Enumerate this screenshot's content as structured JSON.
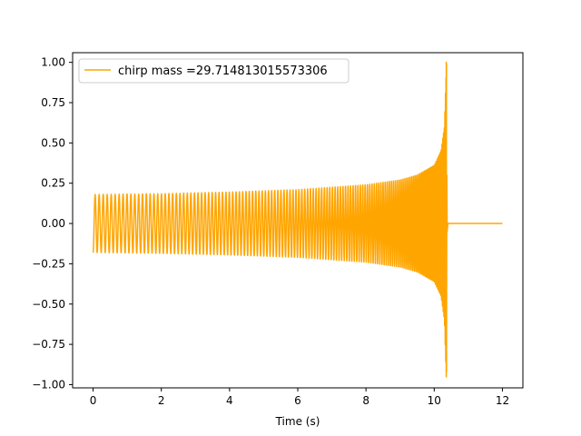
{
  "chart_data": {
    "type": "line",
    "title": "",
    "xlabel": "Time (s)",
    "ylabel": "",
    "xlim": [
      -0.6,
      12.6
    ],
    "ylim": [
      -1.02,
      1.06
    ],
    "x_ticks": [
      0,
      2,
      4,
      6,
      8,
      10,
      12
    ],
    "y_ticks": [
      -1.0,
      -0.75,
      -0.5,
      -0.25,
      0.0,
      0.25,
      0.5,
      0.75,
      1.0
    ],
    "x_tick_labels": [
      "0",
      "2",
      "4",
      "6",
      "8",
      "10",
      "12"
    ],
    "y_tick_labels": [
      "−1.00",
      "−0.75",
      "−0.50",
      "−0.25",
      "0.00",
      "0.25",
      "0.50",
      "0.75",
      "1.00"
    ],
    "grid": false,
    "legend_placement": "top-left",
    "colors": {
      "series": "#ffa500"
    },
    "series": [
      {
        "name": "chirp mass =29.714813015573306",
        "signal": "chirp",
        "t_start": 0.0,
        "t_merger": 10.36,
        "t_end": 12.0,
        "start_amplitude": 0.18,
        "peak_max": 1.0,
        "peak_min": -0.92,
        "envelope": [
          [
            0.0,
            0.18
          ],
          [
            2.0,
            0.185
          ],
          [
            4.0,
            0.195
          ],
          [
            6.0,
            0.21
          ],
          [
            8.0,
            0.24
          ],
          [
            9.0,
            0.27
          ],
          [
            9.5,
            0.3
          ],
          [
            10.0,
            0.36
          ],
          [
            10.2,
            0.45
          ],
          [
            10.3,
            0.6
          ],
          [
            10.36,
            1.0
          ]
        ],
        "post_merger_value": 0.0
      }
    ]
  }
}
